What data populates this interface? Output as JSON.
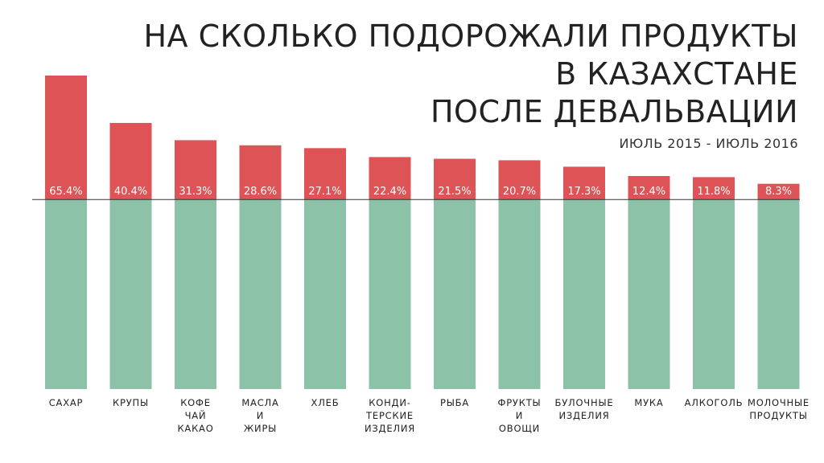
{
  "title": {
    "lines": [
      "НА СКОЛЬКО ПОДОРОЖАЛИ ПРОДУКТЫ",
      "В КАЗАХСТАНЕ",
      "ПОСЛЕ ДЕВАЛЬВАЦИИ"
    ],
    "subtitle": "ИЮЛЬ 2015 - ИЮЛЬ 2016"
  },
  "colors": {
    "increase_bar": "#dd5356",
    "base_bar": "#8cc3a8",
    "baseline": "#333333"
  },
  "chart_data": {
    "type": "bar",
    "title": "НА СКОЛЬКО ПОДОРОЖАЛИ ПРОДУКТЫ В КАЗАХСТАНЕ ПОСЛЕ ДЕВАЛЬВАЦИИ",
    "subtitle": "ИЮЛЬ 2015 - ИЮЛЬ 2016",
    "categories": [
      [
        "САХАР"
      ],
      [
        "КРУПЫ"
      ],
      [
        "КОФЕ",
        "ЧАЙ",
        "КАКАО"
      ],
      [
        "МАСЛА",
        "И",
        "ЖИРЫ"
      ],
      [
        "ХЛЕБ"
      ],
      [
        "КОНДИ-",
        "ТЕРСКИЕ",
        "ИЗДЕЛИЯ"
      ],
      [
        "РЫБА"
      ],
      [
        "ФРУКТЫ",
        "И",
        "ОВОЩИ"
      ],
      [
        "БУЛОЧНЫЕ",
        "ИЗДЕЛИЯ"
      ],
      [
        "МУКА"
      ],
      [
        "АЛКОГОЛЬ"
      ],
      [
        "МОЛОЧНЫЕ",
        "ПРОДУКТЫ"
      ]
    ],
    "values": [
      65.4,
      40.4,
      31.3,
      28.6,
      27.1,
      22.4,
      21.5,
      20.7,
      17.3,
      12.4,
      11.8,
      8.3
    ],
    "value_labels": [
      "65.4%",
      "40.4%",
      "31.3%",
      "28.6%",
      "27.1%",
      "22.4%",
      "21.5%",
      "20.7%",
      "17.3%",
      "12.4%",
      "11.8%",
      "8.3%"
    ],
    "baseline_value": 100,
    "ylim": [
      0,
      165.4
    ],
    "grid": false,
    "legend": "none"
  }
}
